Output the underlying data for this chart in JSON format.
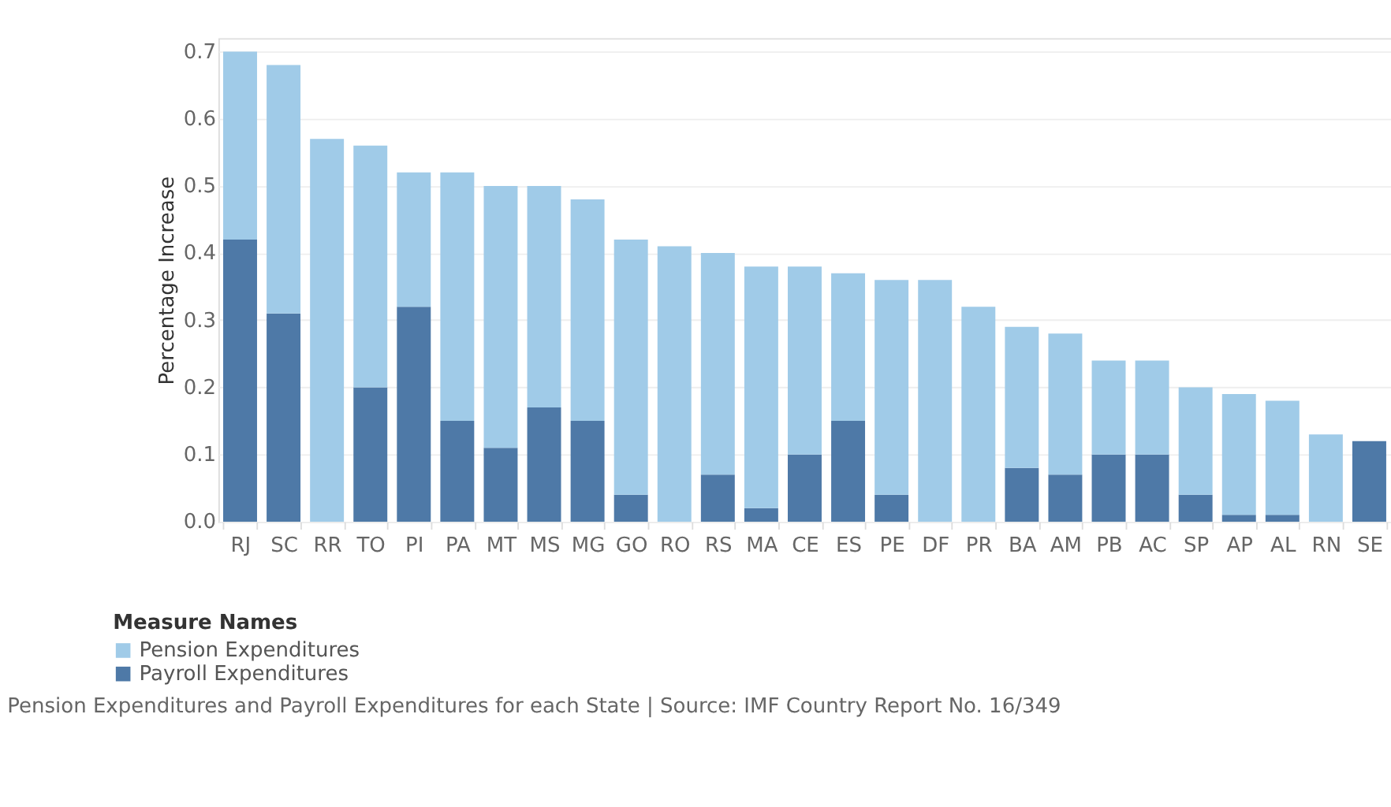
{
  "chart_data": {
    "type": "bar",
    "stacked": true,
    "ylabel": "Percentage Increase",
    "annotations": [
      "Pension Expenditures and Payroll Expenditures for each State | Source: IMF Country Report No. 16/349"
    ],
    "legend_title": "Measure Names",
    "legend": "bottom",
    "grid": "y",
    "categories": [
      "RJ",
      "SC",
      "RR",
      "TO",
      "PI",
      "PA",
      "MT",
      "MS",
      "MG",
      "GO",
      "RO",
      "RS",
      "MA",
      "CE",
      "ES",
      "PE",
      "DF",
      "PR",
      "BA",
      "AM",
      "PB",
      "AC",
      "SP",
      "AP",
      "AL",
      "RN",
      "SE"
    ],
    "series": [
      {
        "name": "Payroll Expenditures",
        "color": "#4e79a7",
        "values": [
          0.42,
          0.31,
          0,
          0.2,
          0.32,
          0.15,
          0.11,
          0.17,
          0.15,
          0.04,
          0,
          0.07,
          0.02,
          0.1,
          0.15,
          0.04,
          0,
          0,
          0.08,
          0.07,
          0.1,
          0.1,
          0.04,
          0.01,
          0.01,
          0,
          0.12
        ]
      },
      {
        "name": "Pension Expenditures",
        "color": "#a0cbe8",
        "values": [
          0.28,
          0.37,
          0.57,
          0.36,
          0.2,
          0.37,
          0.39,
          0.33,
          0.33,
          0.38,
          0.41,
          0.33,
          0.36,
          0.28,
          0.22,
          0.32,
          0.36,
          0.32,
          0.21,
          0.21,
          0.14,
          0.14,
          0.16,
          0.18,
          0.17,
          0.13,
          0
        ]
      }
    ],
    "ylim": [
      0,
      0.72
    ],
    "yticks": [
      {
        "value": 0,
        "label": "0.0"
      },
      0.1,
      0.2,
      0.3,
      0.4,
      0.5,
      0.6,
      0.7
    ]
  }
}
